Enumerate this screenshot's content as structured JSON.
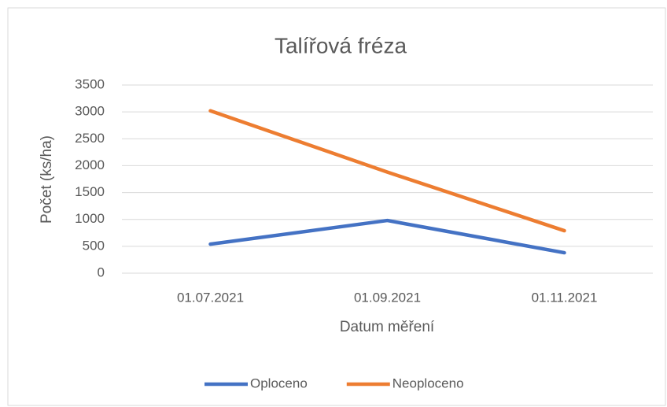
{
  "chart_data": {
    "type": "line",
    "title": "Talířová fréza",
    "x_label": "Datum měření",
    "y_label": "Počet (ks/ha)",
    "categories": [
      "01.07.2021",
      "01.09.2021",
      "01.11.2021"
    ],
    "series": [
      {
        "name": "Oploceno",
        "color": "#4472c4",
        "values": [
          540,
          980,
          380
        ]
      },
      {
        "name": "Neoploceno",
        "color": "#ed7d31",
        "values": [
          3020,
          1880,
          790
        ]
      }
    ],
    "ylim": [
      0,
      3500
    ],
    "yticks": [
      0,
      500,
      1000,
      1500,
      2000,
      2500,
      3000,
      3500
    ],
    "grid": true,
    "legend": "bottom"
  }
}
